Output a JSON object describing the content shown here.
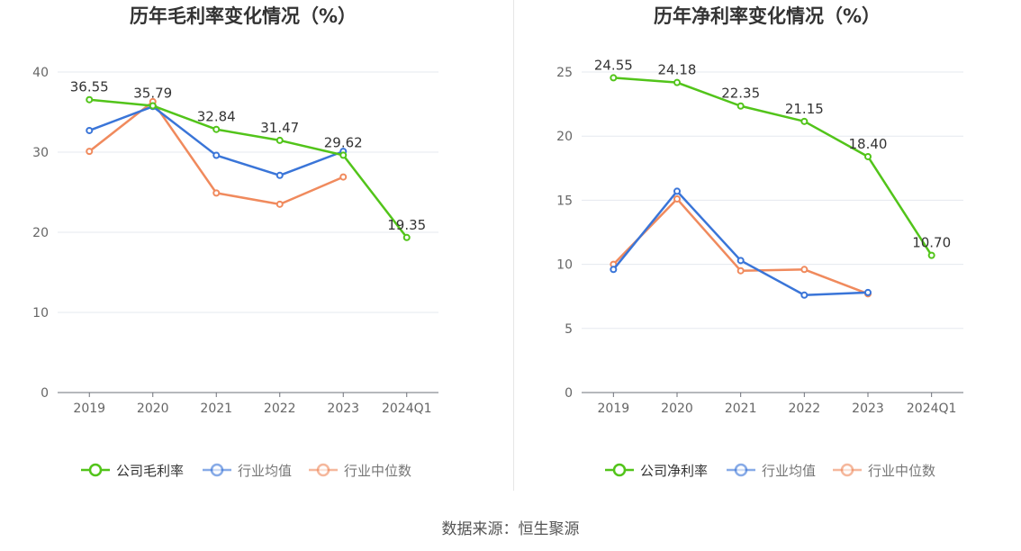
{
  "source_label": "数据来源：恒生聚源",
  "chart_data": [
    {
      "type": "line",
      "title": "历年毛利率变化情况（%）",
      "categories": [
        "2019",
        "2020",
        "2021",
        "2022",
        "2023",
        "2024Q1"
      ],
      "ylim": [
        0,
        40
      ],
      "yticks": [
        0,
        10,
        20,
        30,
        40
      ],
      "grid": true,
      "legend_position": "bottom",
      "series": [
        {
          "name": "公司毛利率",
          "color": "#52c41a",
          "values": [
            36.55,
            35.79,
            32.84,
            31.47,
            29.62,
            19.35
          ],
          "labels": [
            "36.55",
            "35.79",
            "32.84",
            "31.47",
            "29.62",
            "19.35"
          ]
        },
        {
          "name": "行业均值",
          "color": "#3a75d8",
          "values": [
            32.7,
            35.7,
            29.6,
            27.1,
            30.1,
            null
          ]
        },
        {
          "name": "行业中位数",
          "color": "#f08a5d",
          "values": [
            30.1,
            36.3,
            24.9,
            23.5,
            26.9,
            null
          ]
        }
      ]
    },
    {
      "type": "line",
      "title": "历年净利率变化情况（%）",
      "categories": [
        "2019",
        "2020",
        "2021",
        "2022",
        "2023",
        "2024Q1"
      ],
      "ylim": [
        0,
        25
      ],
      "yticks": [
        0,
        5,
        10,
        15,
        20,
        25
      ],
      "grid": true,
      "legend_position": "bottom",
      "series": [
        {
          "name": "公司净利率",
          "color": "#52c41a",
          "values": [
            24.55,
            24.18,
            22.35,
            21.15,
            18.4,
            10.7
          ],
          "labels": [
            "24.55",
            "24.18",
            "22.35",
            "21.15",
            "18.40",
            "10.70"
          ]
        },
        {
          "name": "行业均值",
          "color": "#3a75d8",
          "values": [
            9.6,
            15.7,
            10.3,
            7.6,
            7.8,
            null
          ]
        },
        {
          "name": "行业中位数",
          "color": "#f08a5d",
          "values": [
            10.0,
            15.1,
            9.5,
            9.6,
            7.7,
            null
          ]
        }
      ]
    }
  ]
}
